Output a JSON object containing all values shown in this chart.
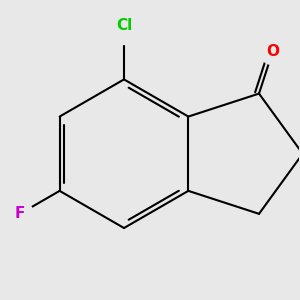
{
  "background_color": "#e8e8e8",
  "bond_color": "#000000",
  "bond_width": 1.5,
  "atom_labels": {
    "O": {
      "color": "#ff0000",
      "fontsize": 11,
      "fontweight": "bold"
    },
    "Cl": {
      "color": "#00cc00",
      "fontsize": 11,
      "fontweight": "bold"
    },
    "F": {
      "color": "#cc00cc",
      "fontsize": 11,
      "fontweight": "bold"
    }
  },
  "figsize": [
    3.0,
    3.0
  ],
  "dpi": 100
}
